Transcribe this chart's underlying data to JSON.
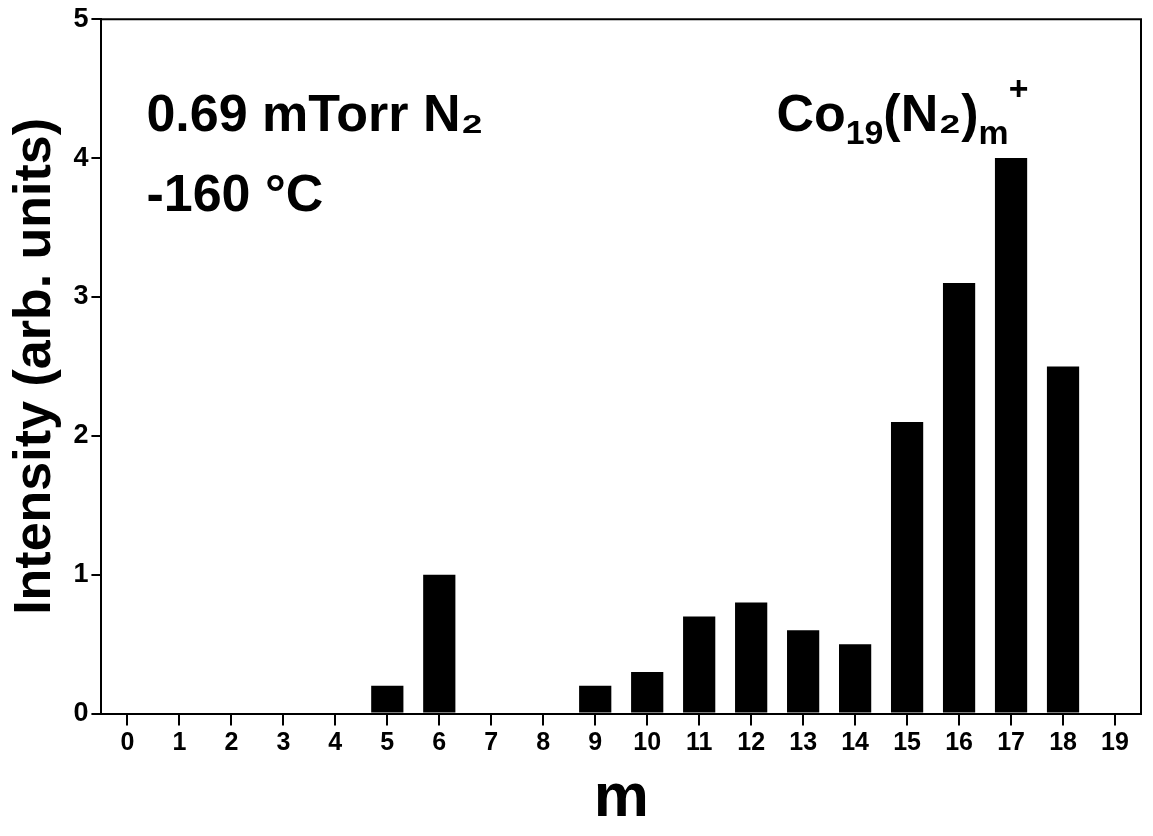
{
  "chart_data": {
    "type": "bar",
    "xlabel": "m",
    "ylabel": "Intensity (arb. units)",
    "x": [
      0,
      1,
      2,
      3,
      4,
      5,
      6,
      7,
      8,
      9,
      10,
      11,
      12,
      13,
      14,
      15,
      16,
      17,
      18,
      19
    ],
    "values": [
      0,
      0,
      0,
      0,
      0,
      0.2,
      1.0,
      0,
      0,
      0.2,
      0.3,
      0.7,
      0.8,
      0.6,
      0.5,
      2.1,
      3.1,
      4.0,
      2.5,
      0
    ],
    "color": "#000000",
    "xlim": [
      -0.5,
      19.5
    ],
    "xticks": [
      0,
      1,
      2,
      3,
      4,
      5,
      6,
      7,
      8,
      9,
      10,
      11,
      12,
      13,
      14,
      15,
      16,
      17,
      18,
      19
    ],
    "ylim": [
      0,
      5
    ],
    "yticks": [
      0,
      1,
      2,
      3,
      4,
      5
    ],
    "annotations": [
      "0.69 mTorr N₂",
      "-160 °C",
      "Co$_{19}$(N₂)$_{m}$$^{+}$"
    ]
  }
}
